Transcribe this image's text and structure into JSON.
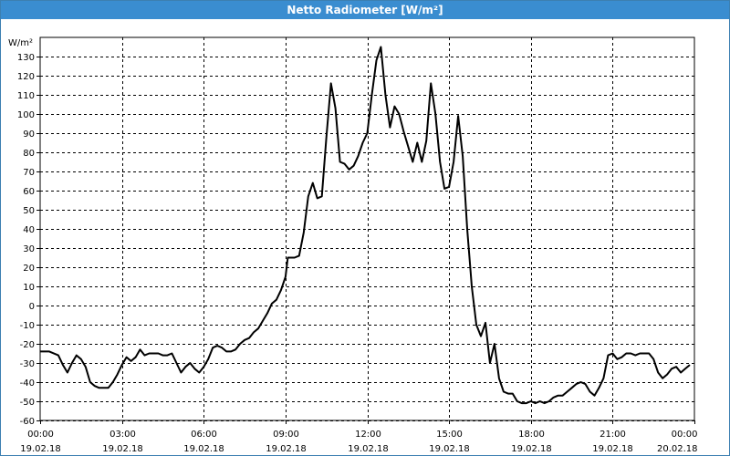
{
  "window": {
    "title": "Netto Radiometer [W/m²]"
  },
  "chart_data": {
    "type": "line",
    "title": "Netto Radiometer [W/m²]",
    "ylabel": "W/m²",
    "xlabel": "",
    "ylim": [
      -60,
      140
    ],
    "xlim": [
      "19.02.18 00:00",
      "20.02.18 00:00"
    ],
    "grid": true,
    "line_color": "#000000",
    "y_ticks": [
      -60,
      -50,
      -40,
      -30,
      -20,
      -10,
      0,
      10,
      20,
      30,
      40,
      50,
      60,
      70,
      80,
      90,
      100,
      110,
      120,
      130
    ],
    "x_ticks": [
      {
        "time": "00:00",
        "date": "19.02.18"
      },
      {
        "time": "03:00",
        "date": "19.02.18"
      },
      {
        "time": "06:00",
        "date": "19.02.18"
      },
      {
        "time": "09:00",
        "date": "19.02.18"
      },
      {
        "time": "12:00",
        "date": "19.02.18"
      },
      {
        "time": "15:00",
        "date": "19.02.18"
      },
      {
        "time": "18:00",
        "date": "19.02.18"
      },
      {
        "time": "21:00",
        "date": "19.02.18"
      },
      {
        "time": "00:00",
        "date": "20.02.18"
      }
    ],
    "series": [
      {
        "points": [
          [
            "19.02.18 00:00",
            -24
          ],
          [
            "19.02.18 00:20",
            -24
          ],
          [
            "19.02.18 00:40",
            -26
          ],
          [
            "19.02.18 00:50",
            -31
          ],
          [
            "19.02.18 01:00",
            -35
          ],
          [
            "19.02.18 01:10",
            -30
          ],
          [
            "19.02.18 01:20",
            -26
          ],
          [
            "19.02.18 01:30",
            -28
          ],
          [
            "19.02.18 01:40",
            -32
          ],
          [
            "19.02.18 01:50",
            -40
          ],
          [
            "19.02.18 02:00",
            -42
          ],
          [
            "19.02.18 02:10",
            -43
          ],
          [
            "19.02.18 02:30",
            -43
          ],
          [
            "19.02.18 02:40",
            -40
          ],
          [
            "19.02.18 02:50",
            -36
          ],
          [
            "19.02.18 03:00",
            -31
          ],
          [
            "19.02.18 03:10",
            -27
          ],
          [
            "19.02.18 03:20",
            -29
          ],
          [
            "19.02.18 03:30",
            -27
          ],
          [
            "19.02.18 03:40",
            -23
          ],
          [
            "19.02.18 03:50",
            -26
          ],
          [
            "19.02.18 04:00",
            -25
          ],
          [
            "19.02.18 04:10",
            -25
          ],
          [
            "19.02.18 04:20",
            -25
          ],
          [
            "19.02.18 04:30",
            -26
          ],
          [
            "19.02.18 04:40",
            -26
          ],
          [
            "19.02.18 04:50",
            -25
          ],
          [
            "19.02.18 05:00",
            -30
          ],
          [
            "19.02.18 05:10",
            -35
          ],
          [
            "19.02.18 05:20",
            -32
          ],
          [
            "19.02.18 05:30",
            -30
          ],
          [
            "19.02.18 05:40",
            -33
          ],
          [
            "19.02.18 05:50",
            -35
          ],
          [
            "19.02.18 06:00",
            -32
          ],
          [
            "19.02.18 06:10",
            -28
          ],
          [
            "19.02.18 06:20",
            -22
          ],
          [
            "19.02.18 06:30",
            -21
          ],
          [
            "19.02.18 06:40",
            -22
          ],
          [
            "19.02.18 06:50",
            -24
          ],
          [
            "19.02.18 07:00",
            -24
          ],
          [
            "19.02.18 07:10",
            -23
          ],
          [
            "19.02.18 07:20",
            -20
          ],
          [
            "19.02.18 07:30",
            -18
          ],
          [
            "19.02.18 07:40",
            -17
          ],
          [
            "19.02.18 07:50",
            -14
          ],
          [
            "19.02.18 08:00",
            -12
          ],
          [
            "19.02.18 08:10",
            -8
          ],
          [
            "19.02.18 08:20",
            -4
          ],
          [
            "19.02.18 08:30",
            1
          ],
          [
            "19.02.18 08:40",
            3
          ],
          [
            "19.02.18 08:50",
            8
          ],
          [
            "19.02.18 09:00",
            15
          ],
          [
            "19.02.18 09:05",
            25
          ],
          [
            "19.02.18 09:20",
            25
          ],
          [
            "19.02.18 09:30",
            26
          ],
          [
            "19.02.18 09:40",
            38
          ],
          [
            "19.02.18 09:50",
            57
          ],
          [
            "19.02.18 10:00",
            64
          ],
          [
            "19.02.18 10:10",
            56
          ],
          [
            "19.02.18 10:20",
            57
          ],
          [
            "19.02.18 10:30",
            88
          ],
          [
            "19.02.18 10:40",
            116
          ],
          [
            "19.02.18 10:50",
            103
          ],
          [
            "19.02.18 11:00",
            75
          ],
          [
            "19.02.18 11:10",
            74
          ],
          [
            "19.02.18 11:20",
            71
          ],
          [
            "19.02.18 11:30",
            73
          ],
          [
            "19.02.18 11:40",
            78
          ],
          [
            "19.02.18 11:50",
            85
          ],
          [
            "19.02.18 12:00",
            90
          ],
          [
            "19.02.18 12:10",
            110
          ],
          [
            "19.02.18 12:20",
            128
          ],
          [
            "19.02.18 12:30",
            135
          ],
          [
            "19.02.18 12:40",
            110
          ],
          [
            "19.02.18 12:50",
            93
          ],
          [
            "19.02.18 13:00",
            104
          ],
          [
            "19.02.18 13:10",
            100
          ],
          [
            "19.02.18 13:20",
            91
          ],
          [
            "19.02.18 13:30",
            83
          ],
          [
            "19.02.18 13:40",
            75
          ],
          [
            "19.02.18 13:50",
            85
          ],
          [
            "19.02.18 14:00",
            75
          ],
          [
            "19.02.18 14:10",
            86
          ],
          [
            "19.02.18 14:20",
            116
          ],
          [
            "19.02.18 14:30",
            100
          ],
          [
            "19.02.18 14:40",
            75
          ],
          [
            "19.02.18 14:50",
            61
          ],
          [
            "19.02.18 15:00",
            62
          ],
          [
            "19.02.18 15:10",
            75
          ],
          [
            "19.02.18 15:20",
            99
          ],
          [
            "19.02.18 15:30",
            78
          ],
          [
            "19.02.18 15:40",
            40
          ],
          [
            "19.02.18 15:50",
            10
          ],
          [
            "19.02.18 16:00",
            -10
          ],
          [
            "19.02.18 16:10",
            -16
          ],
          [
            "19.02.18 16:20",
            -9
          ],
          [
            "19.02.18 16:30",
            -30
          ],
          [
            "19.02.18 16:40",
            -20
          ],
          [
            "19.02.18 16:50",
            -38
          ],
          [
            "19.02.18 17:00",
            -45
          ],
          [
            "19.02.18 17:10",
            -46
          ],
          [
            "19.02.18 17:20",
            -46
          ],
          [
            "19.02.18 17:30",
            -50
          ],
          [
            "19.02.18 17:40",
            -51
          ],
          [
            "19.02.18 17:50",
            -51
          ],
          [
            "19.02.18 18:00",
            -50
          ],
          [
            "19.02.18 18:10",
            -51
          ],
          [
            "19.02.18 18:20",
            -50
          ],
          [
            "19.02.18 18:30",
            -51
          ],
          [
            "19.02.18 18:40",
            -50
          ],
          [
            "19.02.18 18:50",
            -48
          ],
          [
            "19.02.18 19:00",
            -47
          ],
          [
            "19.02.18 19:10",
            -47
          ],
          [
            "19.02.18 19:20",
            -45
          ],
          [
            "19.02.18 19:30",
            -43
          ],
          [
            "19.02.18 19:40",
            -41
          ],
          [
            "19.02.18 19:50",
            -40
          ],
          [
            "19.02.18 20:00",
            -41
          ],
          [
            "19.02.18 20:10",
            -45
          ],
          [
            "19.02.18 20:20",
            -47
          ],
          [
            "19.02.18 20:30",
            -43
          ],
          [
            "19.02.18 20:40",
            -38
          ],
          [
            "19.02.18 20:50",
            -26
          ],
          [
            "19.02.18 21:00",
            -25
          ],
          [
            "19.02.18 21:10",
            -28
          ],
          [
            "19.02.18 21:20",
            -27
          ],
          [
            "19.02.18 21:30",
            -25
          ],
          [
            "19.02.18 21:40",
            -25
          ],
          [
            "19.02.18 21:50",
            -26
          ],
          [
            "19.02.18 22:00",
            -25
          ],
          [
            "19.02.18 22:20",
            -25
          ],
          [
            "19.02.18 22:30",
            -28
          ],
          [
            "19.02.18 22:40",
            -35
          ],
          [
            "19.02.18 22:50",
            -38
          ],
          [
            "19.02.18 23:00",
            -36
          ],
          [
            "19.02.18 23:10",
            -33
          ],
          [
            "19.02.18 23:20",
            -32
          ],
          [
            "19.02.18 23:30",
            -35
          ],
          [
            "19.02.18 23:40",
            -33
          ],
          [
            "19.02.18 23:50",
            -31
          ]
        ]
      }
    ]
  }
}
